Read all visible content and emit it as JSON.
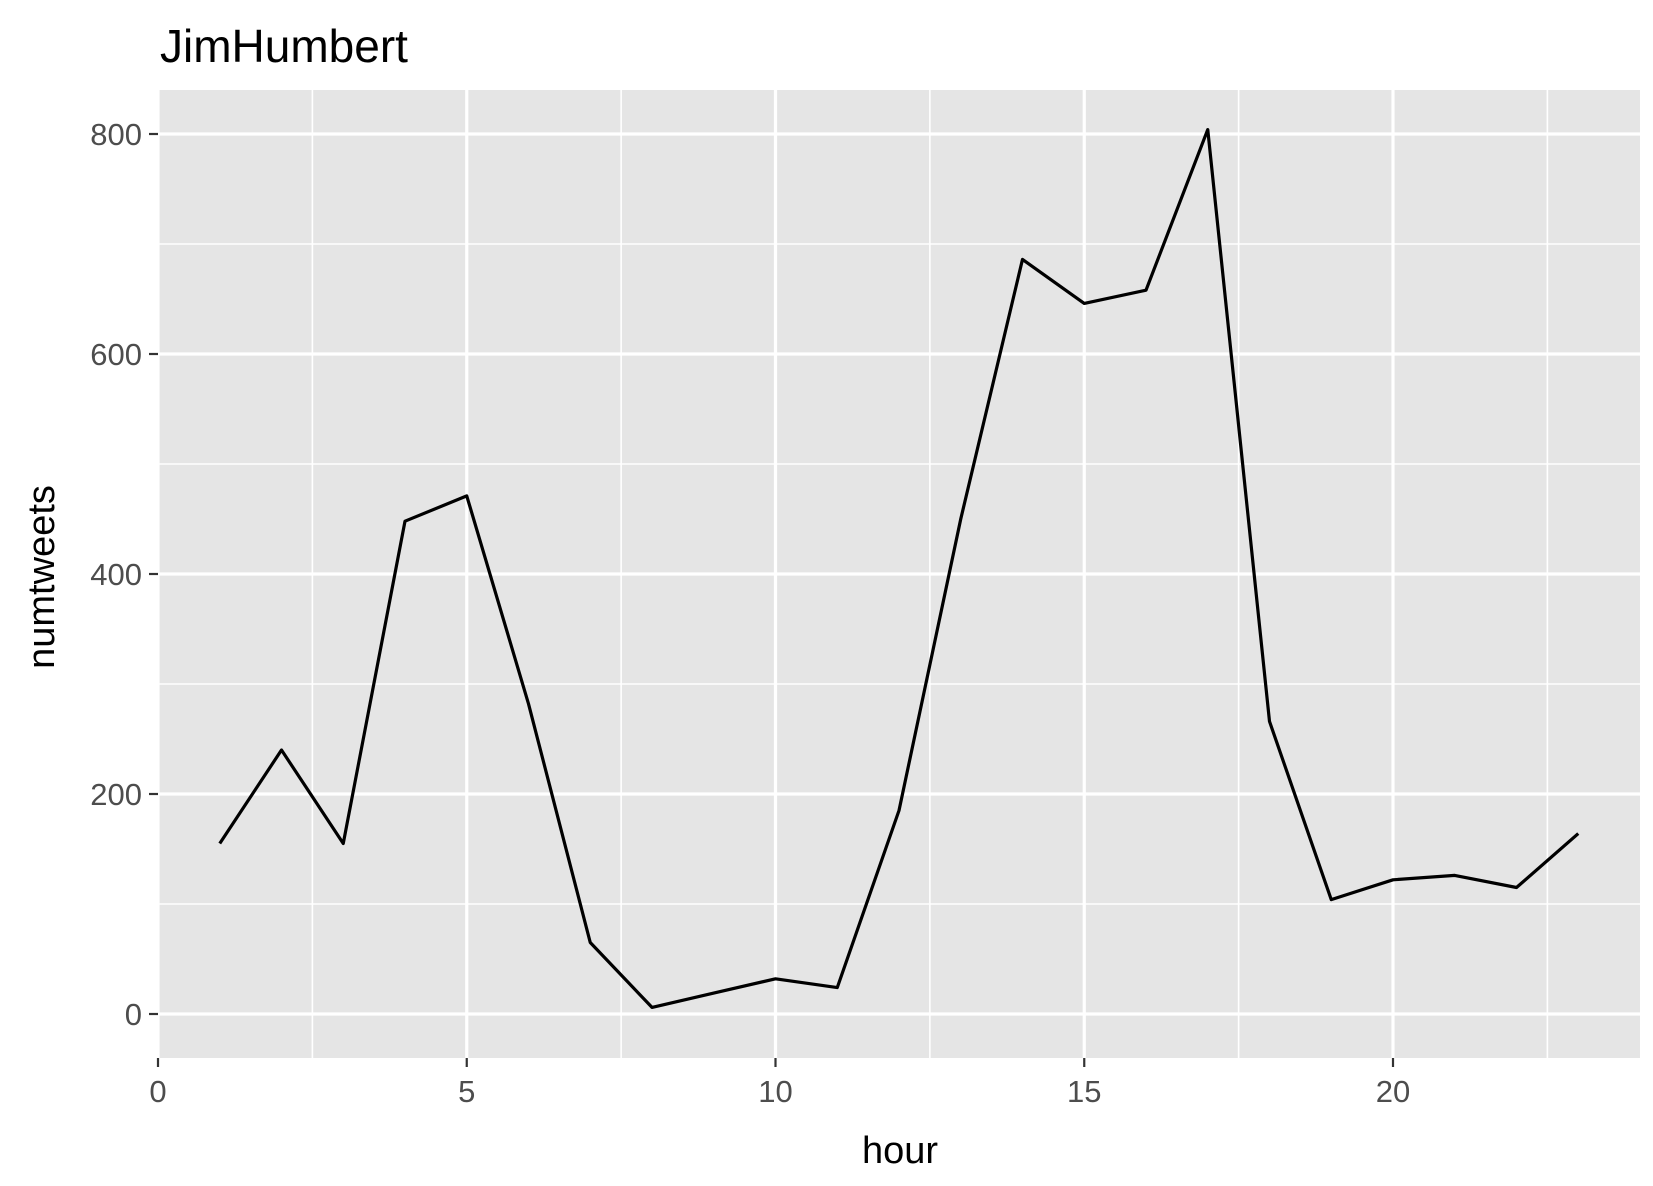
{
  "chart_data": {
    "type": "line",
    "title": "JimHumbert",
    "xlabel": "hour",
    "ylabel": "numtweets",
    "xlim": [
      0,
      24
    ],
    "ylim": [
      -40,
      840
    ],
    "x_ticks": [
      0,
      5,
      10,
      15,
      20
    ],
    "x_tick_labels": [
      "0",
      "5",
      "10",
      "15",
      "20"
    ],
    "x_minor_ticks": [
      2.5,
      7.5,
      12.5,
      17.5,
      22.5
    ],
    "y_ticks": [
      0,
      200,
      400,
      600,
      800
    ],
    "y_tick_labels": [
      "0",
      "200",
      "400",
      "600",
      "800"
    ],
    "y_minor_ticks": [
      100,
      300,
      500,
      700
    ],
    "grid": true,
    "legend": "none",
    "colors": {
      "panel_background": "#e5e5e5",
      "grid_line": "#ffffff",
      "series_line": "#000000",
      "tick_mark": "#333333"
    },
    "series": [
      {
        "x": [
          1,
          2,
          3,
          4,
          5,
          6,
          7,
          8,
          9,
          10,
          11,
          12,
          13,
          14,
          15,
          16,
          17,
          18,
          19,
          20,
          21,
          22,
          23
        ],
        "values": [
          155,
          240,
          155,
          448,
          471,
          282,
          65,
          6,
          19,
          32,
          24,
          185,
          450,
          686,
          646,
          658,
          804,
          266,
          104,
          122,
          126,
          115,
          164
        ]
      }
    ]
  }
}
